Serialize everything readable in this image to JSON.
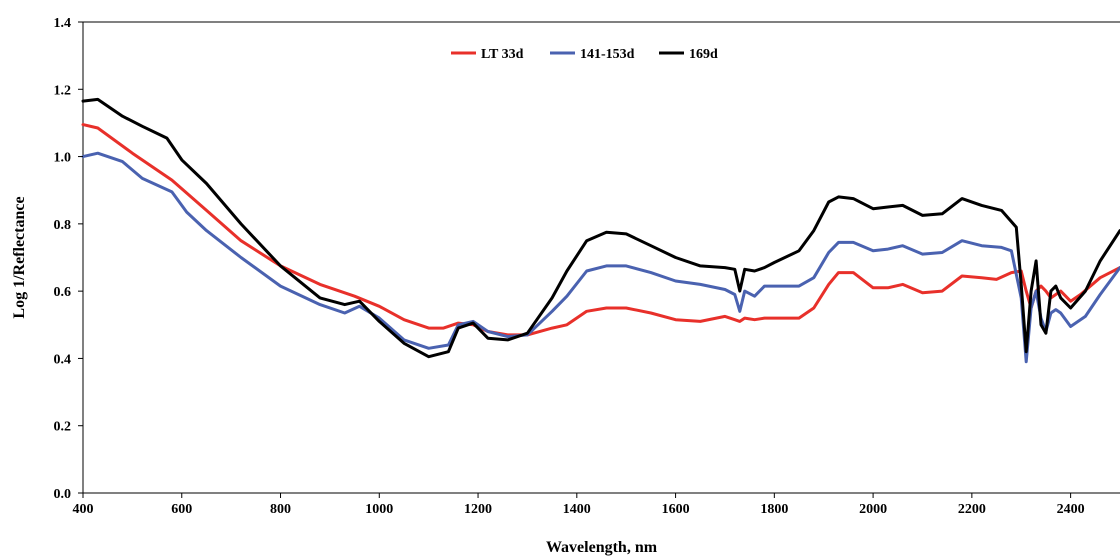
{
  "chart_data": {
    "type": "line",
    "title": "",
    "xlabel": "Wavelength, nm",
    "ylabel": "Log 1/Reflectance",
    "xlim": [
      400,
      2500
    ],
    "ylim": [
      0.0,
      1.4
    ],
    "xticks": [
      400,
      600,
      800,
      1000,
      1200,
      1400,
      1600,
      1800,
      2000,
      2200,
      2400
    ],
    "yticks": [
      0.0,
      0.2,
      0.4,
      0.6,
      0.8,
      1.0,
      1.2,
      1.4
    ],
    "ytick_labels": [
      "0.0",
      "0.2",
      "0.4",
      "0.6",
      "0.8",
      "1.0",
      "1.2",
      "1.4"
    ],
    "grid": false,
    "legend_position": "top-center",
    "series": [
      {
        "name": "LT 33d",
        "color": "#e8302a",
        "x": [
          400,
          430,
          500,
          580,
          650,
          720,
          800,
          880,
          950,
          1000,
          1050,
          1100,
          1130,
          1160,
          1190,
          1220,
          1260,
          1300,
          1350,
          1380,
          1420,
          1460,
          1500,
          1550,
          1600,
          1650,
          1700,
          1720,
          1730,
          1740,
          1760,
          1780,
          1800,
          1850,
          1880,
          1910,
          1930,
          1960,
          2000,
          2030,
          2060,
          2100,
          2140,
          2180,
          2220,
          2250,
          2280,
          2300,
          2310,
          2320,
          2330,
          2340,
          2350,
          2360,
          2380,
          2400,
          2420,
          2460,
          2500
        ],
        "values": [
          1.095,
          1.085,
          1.01,
          0.93,
          0.84,
          0.75,
          0.675,
          0.62,
          0.585,
          0.555,
          0.515,
          0.49,
          0.49,
          0.505,
          0.5,
          0.48,
          0.47,
          0.47,
          0.49,
          0.5,
          0.54,
          0.55,
          0.55,
          0.535,
          0.515,
          0.51,
          0.525,
          0.515,
          0.51,
          0.52,
          0.515,
          0.52,
          0.52,
          0.52,
          0.55,
          0.62,
          0.655,
          0.655,
          0.61,
          0.61,
          0.62,
          0.595,
          0.6,
          0.645,
          0.64,
          0.635,
          0.655,
          0.66,
          0.6,
          0.55,
          0.6,
          0.615,
          0.6,
          0.58,
          0.6,
          0.57,
          0.59,
          0.64,
          0.67
        ]
      },
      {
        "name": "141-153d",
        "color": "#4a62b0",
        "x": [
          400,
          430,
          480,
          520,
          580,
          610,
          650,
          720,
          800,
          880,
          930,
          960,
          1000,
          1050,
          1100,
          1140,
          1160,
          1190,
          1220,
          1260,
          1300,
          1350,
          1380,
          1420,
          1460,
          1500,
          1550,
          1600,
          1650,
          1700,
          1720,
          1730,
          1740,
          1760,
          1780,
          1800,
          1850,
          1880,
          1910,
          1930,
          1960,
          2000,
          2030,
          2060,
          2100,
          2140,
          2180,
          2220,
          2260,
          2280,
          2300,
          2310,
          2320,
          2330,
          2340,
          2350,
          2360,
          2370,
          2380,
          2400,
          2430,
          2460,
          2500
        ],
        "values": [
          1.0,
          1.01,
          0.985,
          0.935,
          0.895,
          0.835,
          0.78,
          0.7,
          0.615,
          0.56,
          0.535,
          0.555,
          0.52,
          0.455,
          0.43,
          0.44,
          0.5,
          0.51,
          0.48,
          0.465,
          0.47,
          0.54,
          0.585,
          0.66,
          0.675,
          0.675,
          0.655,
          0.63,
          0.62,
          0.605,
          0.59,
          0.54,
          0.6,
          0.585,
          0.615,
          0.615,
          0.615,
          0.64,
          0.715,
          0.745,
          0.745,
          0.72,
          0.725,
          0.735,
          0.71,
          0.715,
          0.75,
          0.735,
          0.73,
          0.72,
          0.58,
          0.39,
          0.55,
          0.6,
          0.52,
          0.48,
          0.535,
          0.545,
          0.535,
          0.495,
          0.525,
          0.59,
          0.67
        ]
      },
      {
        "name": "169d",
        "color": "#000000",
        "x": [
          400,
          430,
          480,
          520,
          570,
          600,
          650,
          720,
          800,
          880,
          930,
          960,
          1000,
          1050,
          1100,
          1140,
          1160,
          1190,
          1220,
          1260,
          1300,
          1350,
          1380,
          1420,
          1460,
          1500,
          1550,
          1600,
          1650,
          1700,
          1720,
          1730,
          1740,
          1760,
          1780,
          1800,
          1850,
          1880,
          1910,
          1930,
          1960,
          2000,
          2030,
          2060,
          2100,
          2140,
          2180,
          2220,
          2260,
          2290,
          2300,
          2310,
          2320,
          2330,
          2340,
          2350,
          2360,
          2370,
          2380,
          2400,
          2430,
          2460,
          2500
        ],
        "values": [
          1.165,
          1.17,
          1.12,
          1.09,
          1.055,
          0.99,
          0.92,
          0.8,
          0.675,
          0.58,
          0.56,
          0.57,
          0.51,
          0.445,
          0.405,
          0.42,
          0.49,
          0.505,
          0.46,
          0.455,
          0.475,
          0.58,
          0.66,
          0.75,
          0.775,
          0.77,
          0.735,
          0.7,
          0.675,
          0.67,
          0.665,
          0.6,
          0.665,
          0.66,
          0.67,
          0.685,
          0.72,
          0.78,
          0.865,
          0.88,
          0.875,
          0.845,
          0.85,
          0.855,
          0.825,
          0.83,
          0.875,
          0.855,
          0.84,
          0.79,
          0.62,
          0.42,
          0.6,
          0.69,
          0.5,
          0.475,
          0.6,
          0.615,
          0.58,
          0.55,
          0.6,
          0.69,
          0.78
        ]
      }
    ]
  }
}
